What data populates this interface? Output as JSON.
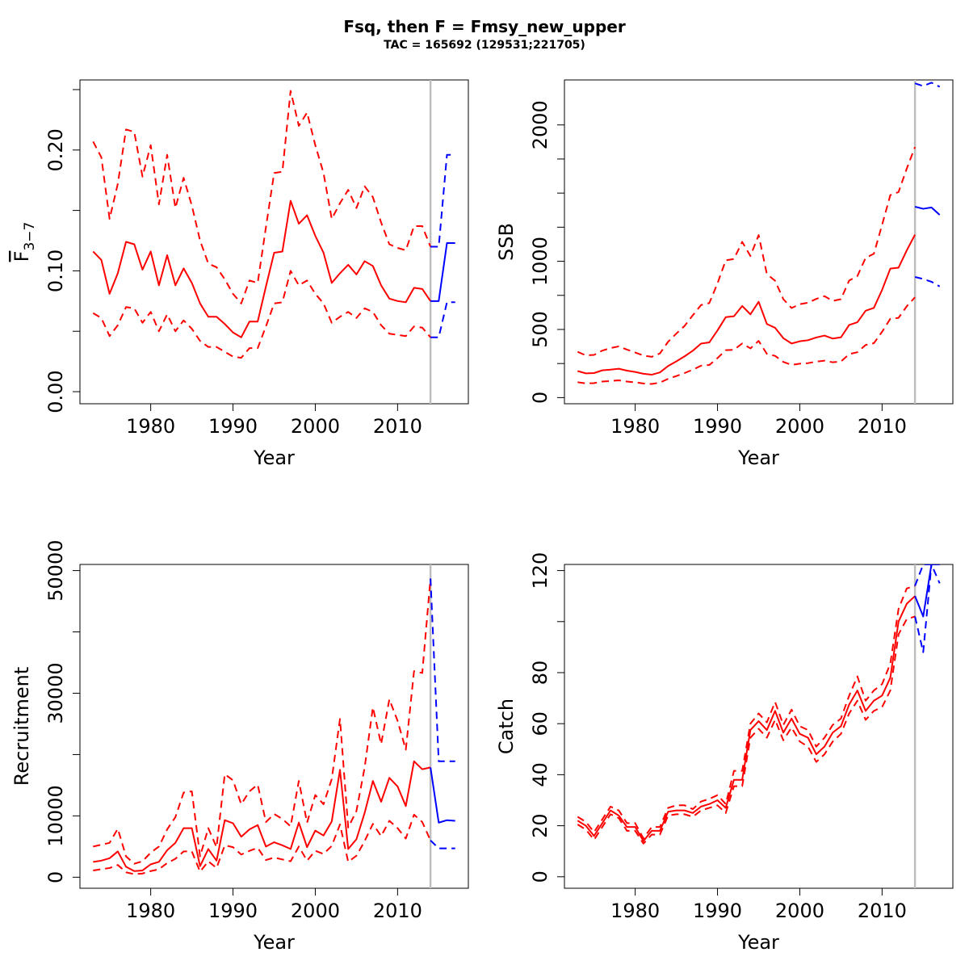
{
  "title": "Fsq, then F = Fmsy_new_upper",
  "subtitle": "TAC = 165692 (129531;221705)",
  "colors": {
    "historical": "#ff0000",
    "projection": "#0000ff",
    "divider": "#bebebe"
  },
  "projection_start_year": 2014,
  "chart_data": [
    {
      "id": "fbar",
      "type": "line",
      "xlabel": "Year",
      "ylabel_main": "F",
      "ylabel_sub": "3−7",
      "xlim": [
        1971.4,
        2018.6
      ],
      "ylim": [
        -0.01,
        0.258
      ],
      "xticks": [
        1980,
        1990,
        2000,
        2010
      ],
      "yticks": [
        0,
        0.05,
        0.1,
        0.15,
        0.2,
        0.25
      ],
      "ytick_labels": [
        "0.00",
        "",
        "0.10",
        "",
        "0.20",
        ""
      ],
      "grid": false,
      "x": [
        1973,
        1974,
        1975,
        1976,
        1977,
        1978,
        1979,
        1980,
        1981,
        1982,
        1983,
        1984,
        1985,
        1986,
        1987,
        1988,
        1989,
        1990,
        1991,
        1992,
        1993,
        1994,
        1995,
        1996,
        1997,
        1998,
        1999,
        2000,
        2001,
        2002,
        2003,
        2004,
        2005,
        2006,
        2007,
        2008,
        2009,
        2010,
        2011,
        2012,
        2013,
        2014
      ],
      "series": [
        {
          "style": "solid",
          "values": [
            0.116,
            0.109,
            0.081,
            0.098,
            0.124,
            0.122,
            0.101,
            0.116,
            0.088,
            0.113,
            0.088,
            0.102,
            0.09,
            0.073,
            0.062,
            0.062,
            0.056,
            0.049,
            0.045,
            0.058,
            0.058,
            0.087,
            0.115,
            0.116,
            0.158,
            0.139,
            0.146,
            0.129,
            0.115,
            0.09,
            0.098,
            0.105,
            0.097,
            0.108,
            0.104,
            0.088,
            0.077,
            0.075,
            0.074,
            0.086,
            0.085,
            0.075
          ]
        },
        {
          "style": "dashed",
          "values": [
            0.207,
            0.194,
            0.143,
            0.172,
            0.217,
            0.215,
            0.178,
            0.204,
            0.155,
            0.196,
            0.152,
            0.177,
            0.154,
            0.125,
            0.106,
            0.103,
            0.093,
            0.081,
            0.073,
            0.092,
            0.09,
            0.136,
            0.181,
            0.182,
            0.249,
            0.22,
            0.231,
            0.204,
            0.181,
            0.143,
            0.156,
            0.167,
            0.152,
            0.17,
            0.161,
            0.14,
            0.122,
            0.119,
            0.117,
            0.137,
            0.137,
            0.12
          ]
        },
        {
          "style": "dashed",
          "values": [
            0.065,
            0.061,
            0.046,
            0.055,
            0.07,
            0.069,
            0.057,
            0.066,
            0.05,
            0.064,
            0.05,
            0.059,
            0.052,
            0.042,
            0.037,
            0.037,
            0.033,
            0.029,
            0.028,
            0.036,
            0.036,
            0.054,
            0.073,
            0.074,
            0.1,
            0.088,
            0.092,
            0.081,
            0.073,
            0.057,
            0.062,
            0.066,
            0.061,
            0.069,
            0.066,
            0.055,
            0.048,
            0.047,
            0.046,
            0.054,
            0.053,
            0.045
          ]
        }
      ],
      "projection": {
        "x": [
          2014,
          2015,
          2016,
          2017
        ],
        "series": [
          {
            "style": "solid",
            "values": [
              0.075,
              0.075,
              0.123,
              0.123
            ]
          },
          {
            "style": "dashed",
            "values": [
              0.12,
              0.12,
              0.196,
              0.196
            ]
          },
          {
            "style": "dashed",
            "values": [
              0.045,
              0.045,
              0.074,
              0.074
            ]
          }
        ]
      }
    },
    {
      "id": "ssb",
      "type": "line",
      "xlabel": "Year",
      "ylabel": "SSB",
      "xlim": [
        1971.4,
        2018.6
      ],
      "ylim": [
        -45,
        2330
      ],
      "xticks": [
        1980,
        1990,
        2000,
        2010
      ],
      "yticks": [
        0,
        250,
        500,
        750,
        1000,
        1250,
        1500,
        1750,
        2000
      ],
      "ytick_labels": [
        "0",
        "",
        "500",
        "",
        "1000",
        "",
        "",
        "",
        "2000"
      ],
      "grid": false,
      "x": [
        1973,
        1974,
        1975,
        1976,
        1977,
        1978,
        1979,
        1980,
        1981,
        1982,
        1983,
        1984,
        1985,
        1986,
        1987,
        1988,
        1989,
        1990,
        1991,
        1992,
        1993,
        1994,
        1995,
        1996,
        1997,
        1998,
        1999,
        2000,
        2001,
        2002,
        2003,
        2004,
        2005,
        2006,
        2007,
        2008,
        2009,
        2010,
        2011,
        2012,
        2013,
        2014
      ],
      "series": [
        {
          "style": "solid",
          "values": [
            195,
            178,
            180,
            200,
            205,
            212,
            198,
            188,
            175,
            168,
            185,
            232,
            266,
            303,
            344,
            396,
            405,
            493,
            590,
            597,
            672,
            611,
            703,
            540,
            512,
            436,
            397,
            413,
            421,
            441,
            455,
            433,
            442,
            533,
            553,
            637,
            658,
            790,
            946,
            953,
            1080,
            1195
          ]
        },
        {
          "style": "dashed",
          "values": [
            336,
            310,
            313,
            345,
            363,
            376,
            352,
            331,
            309,
            299,
            324,
            410,
            470,
            526,
            604,
            679,
            693,
            838,
            1007,
            1017,
            1142,
            1039,
            1192,
            906,
            857,
            722,
            657,
            685,
            696,
            724,
            744,
            709,
            722,
            859,
            892,
            1025,
            1055,
            1267,
            1485,
            1508,
            1680,
            1838
          ]
        },
        {
          "style": "dashed",
          "values": [
            113,
            104,
            106,
            118,
            122,
            127,
            118,
            112,
            104,
            100,
            110,
            138,
            158,
            180,
            205,
            234,
            239,
            290,
            348,
            351,
            397,
            361,
            416,
            321,
            306,
            262,
            240,
            249,
            253,
            264,
            271,
            259,
            265,
            319,
            333,
            386,
            399,
            483,
            578,
            585,
            670,
            736
          ]
        }
      ],
      "projection": {
        "x": [
          2014,
          2015,
          2016,
          2017
        ],
        "series": [
          {
            "style": "solid",
            "values": [
              1400,
              1385,
              1395,
              1340
            ]
          },
          {
            "style": "dashed",
            "values": [
              2305,
              2285,
              2310,
              2280
            ]
          },
          {
            "style": "dashed",
            "values": [
              885,
              870,
              850,
              815
            ]
          }
        ]
      }
    },
    {
      "id": "recruitment",
      "type": "line",
      "xlabel": "Year",
      "ylabel": "Recruitment",
      "xlim": [
        1971.4,
        2018.6
      ],
      "ylim": [
        -1800,
        51000
      ],
      "xticks": [
        1980,
        1990,
        2000,
        2010
      ],
      "yticks": [
        0,
        10000,
        20000,
        30000,
        40000,
        50000
      ],
      "ytick_labels": [
        "0",
        "10000",
        "",
        "30000",
        "",
        "50000"
      ],
      "grid": false,
      "x": [
        1973,
        1974,
        1975,
        1976,
        1977,
        1978,
        1979,
        1980,
        1981,
        1982,
        1983,
        1984,
        1985,
        1986,
        1987,
        1988,
        1989,
        1990,
        1991,
        1992,
        1993,
        1994,
        1995,
        1996,
        1997,
        1998,
        1999,
        2000,
        2001,
        2002,
        2003,
        2004,
        2005,
        2006,
        2007,
        2008,
        2009,
        2010,
        2011,
        2012,
        2013,
        2014
      ],
      "series": [
        {
          "style": "solid",
          "values": [
            2500,
            2700,
            3100,
            4200,
            1700,
            1000,
            1100,
            2100,
            2500,
            4400,
            5600,
            8000,
            8000,
            1800,
            4600,
            2700,
            9300,
            8800,
            6600,
            7800,
            8500,
            5000,
            5700,
            5200,
            4600,
            8900,
            4900,
            7600,
            6800,
            9100,
            17500,
            4600,
            6200,
            10500,
            15700,
            12300,
            16200,
            14800,
            11600,
            18900,
            17600,
            17900
          ]
        },
        {
          "style": "dashed",
          "values": [
            5000,
            5300,
            5600,
            7900,
            3400,
            2200,
            2600,
            4000,
            5000,
            7800,
            9800,
            13800,
            14000,
            3400,
            8000,
            4900,
            16800,
            15800,
            11900,
            14000,
            15100,
            9000,
            10300,
            9500,
            8300,
            15700,
            8900,
            13400,
            11900,
            16000,
            25800,
            8100,
            10800,
            17900,
            27700,
            21700,
            29000,
            25500,
            20800,
            33600,
            33300,
            48700
          ]
        },
        {
          "style": "dashed",
          "values": [
            1100,
            1300,
            1500,
            2000,
            800,
            500,
            600,
            1000,
            1300,
            2300,
            3000,
            4200,
            4200,
            900,
            2600,
            1500,
            5200,
            4900,
            3700,
            4300,
            4800,
            2800,
            3200,
            2900,
            2600,
            5000,
            2700,
            4300,
            3800,
            5100,
            8600,
            2500,
            3500,
            5900,
            8700,
            6700,
            9200,
            8000,
            6300,
            10200,
            9000,
            6000
          ]
        }
      ],
      "projection": {
        "x": [
          2014,
          2015,
          2016,
          2017
        ],
        "series": [
          {
            "style": "solid",
            "values": [
              17900,
              8900,
              9300,
              9200
            ]
          },
          {
            "style": "dashed",
            "values": [
              48700,
              18900,
              18900,
              18900
            ]
          },
          {
            "style": "dashed",
            "values": [
              6000,
              4700,
              4700,
              4700
            ]
          }
        ]
      }
    },
    {
      "id": "catch",
      "type": "line",
      "xlabel": "Year",
      "ylabel": "Catch",
      "xlim": [
        1971.4,
        2018.6
      ],
      "ylim": [
        -4.5,
        122.4
      ],
      "xticks": [
        1980,
        1990,
        2000,
        2010
      ],
      "yticks": [
        0,
        20,
        40,
        60,
        80,
        100,
        120
      ],
      "ytick_labels": [
        "0",
        "20",
        "40",
        "60",
        "80",
        "",
        "120"
      ],
      "grid": false,
      "x": [
        1973,
        1974,
        1975,
        1976,
        1977,
        1978,
        1979,
        1980,
        1981,
        1982,
        1983,
        1984,
        1985,
        1986,
        1987,
        1988,
        1989,
        1990,
        1991,
        1992,
        1993,
        1994,
        1995,
        1996,
        1997,
        1998,
        1999,
        2000,
        2001,
        2002,
        2003,
        2004,
        2005,
        2006,
        2007,
        2008,
        2009,
        2010,
        2011,
        2012,
        2013,
        2014
      ],
      "series": [
        {
          "style": "solid",
          "values": [
            22,
            20,
            16,
            21,
            26,
            24,
            19.5,
            19.5,
            14,
            18,
            18,
            25.5,
            26,
            26,
            25,
            27.5,
            28.5,
            30,
            27,
            38,
            38,
            57.5,
            61,
            57.5,
            65,
            56.5,
            62,
            56,
            54.5,
            48,
            51,
            56.5,
            59,
            67.5,
            73,
            65,
            69,
            71,
            78,
            100,
            107,
            110
          ]
        },
        {
          "style": "dashed",
          "values": [
            23.5,
            21.5,
            17.5,
            22.5,
            27.5,
            26,
            21,
            21,
            15,
            19.5,
            19.5,
            27,
            28,
            28,
            26.5,
            29.5,
            30.5,
            32,
            28.5,
            41.5,
            41.5,
            60,
            64,
            60.5,
            68.5,
            59.5,
            65.5,
            59,
            57.5,
            51,
            54.5,
            59.5,
            62,
            71,
            78.5,
            69,
            73,
            75.5,
            83.5,
            105,
            113,
            114
          ]
        },
        {
          "style": "dashed",
          "values": [
            20.5,
            18.5,
            14.5,
            19.5,
            24.5,
            23,
            18,
            18,
            13,
            16.5,
            16.5,
            24,
            24.5,
            24.5,
            23.5,
            26,
            27,
            28,
            25,
            35.5,
            35.5,
            54.5,
            58,
            54.5,
            61.5,
            53.5,
            58.5,
            53,
            51,
            45,
            48,
            53,
            56,
            64,
            69,
            61.5,
            65,
            66.5,
            73,
            95,
            101,
            102
          ]
        }
      ],
      "projection": {
        "x": [
          2014,
          2015,
          2016,
          2017
        ],
        "series": [
          {
            "style": "solid",
            "values": [
              110,
              102,
              122.4,
              122.4
            ]
          },
          {
            "style": "dashed",
            "values": [
              114,
              122.4,
              122.4,
              115
            ]
          },
          {
            "style": "dashed",
            "values": [
              102,
              88,
              122.4,
              122.4
            ]
          }
        ]
      }
    }
  ]
}
